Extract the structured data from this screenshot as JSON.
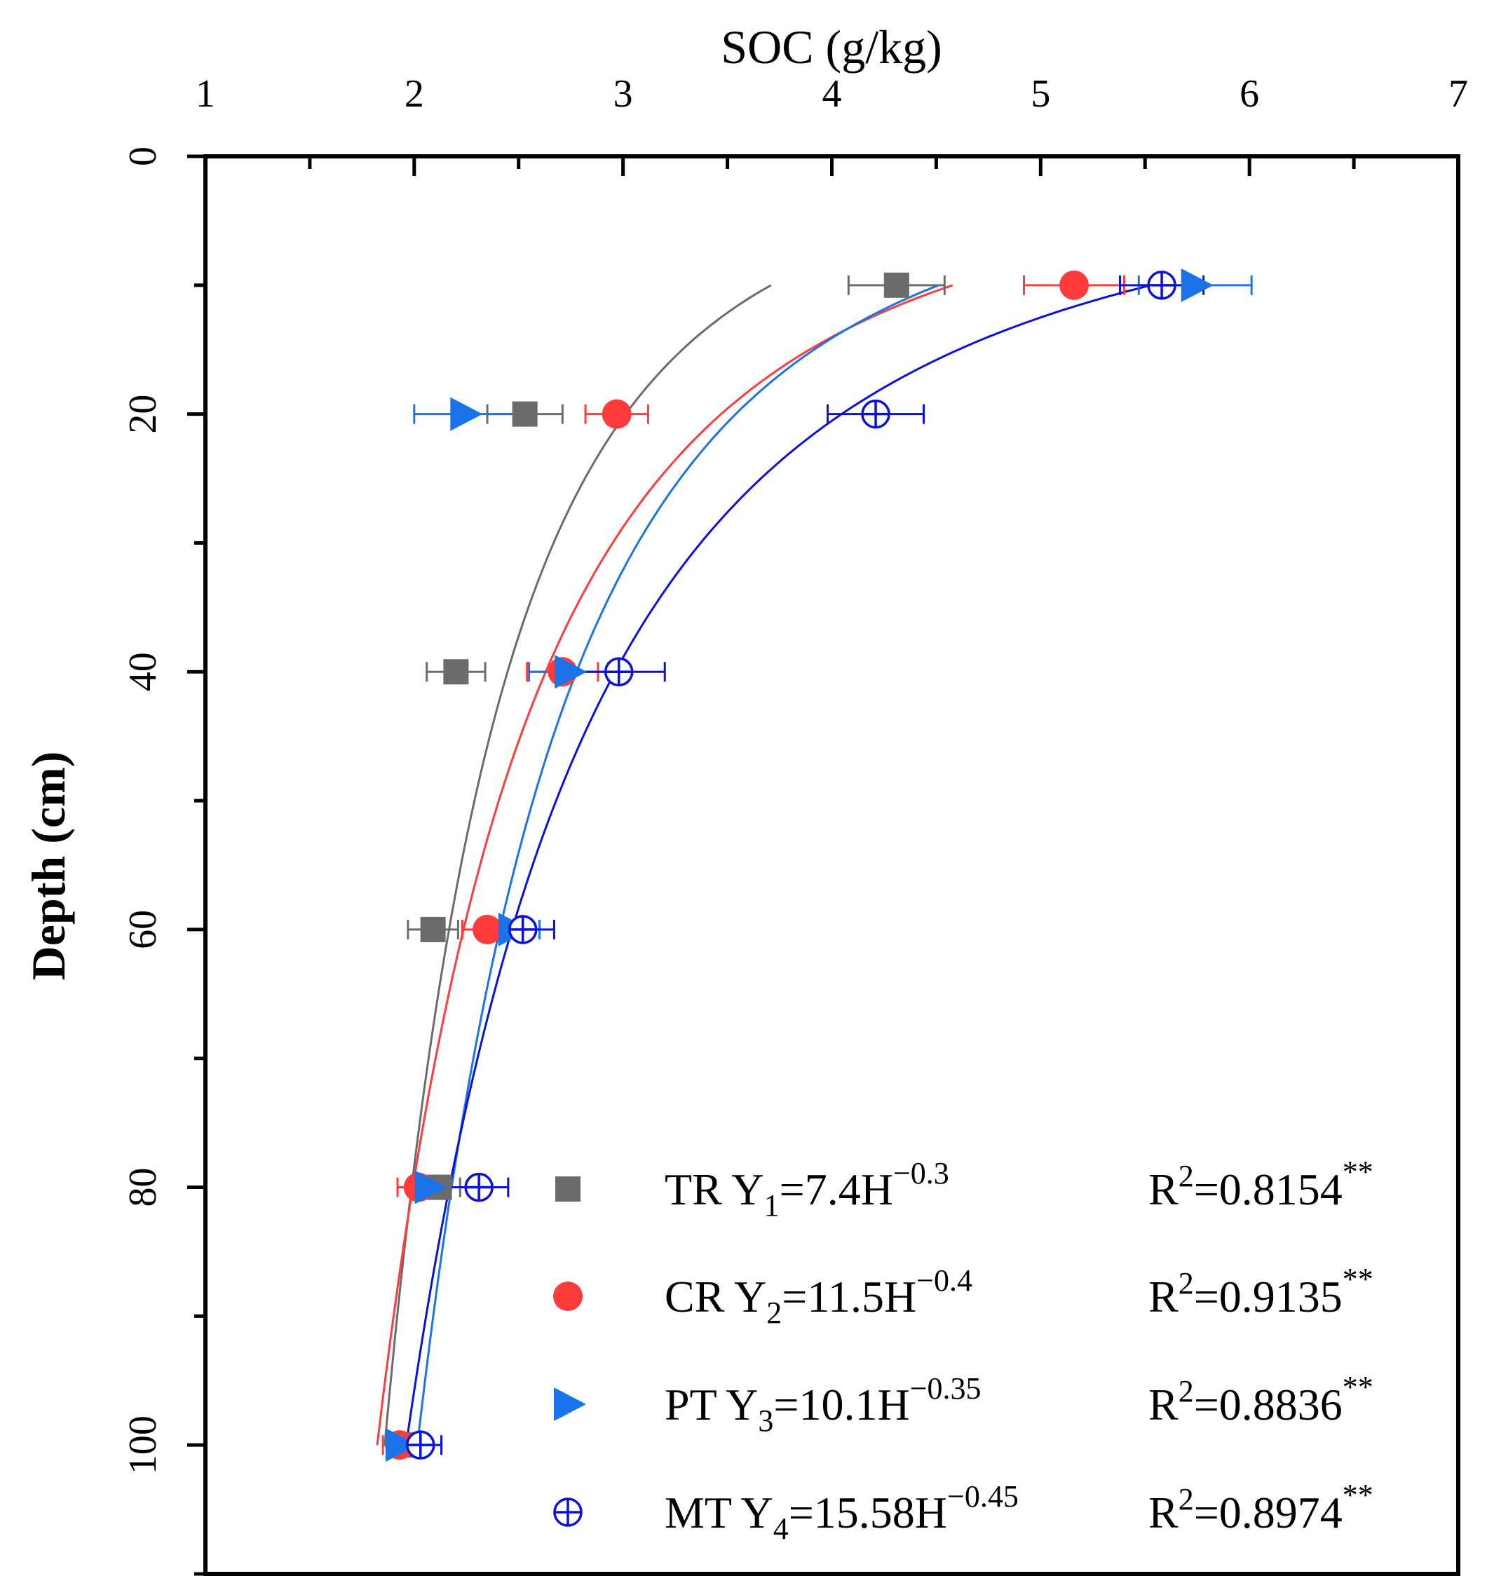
{
  "chart_data": {
    "type": "scatter",
    "title": "",
    "xlabel": "SOC (g/kg)",
    "ylabel": "Depth (cm)",
    "xlim": [
      1,
      7
    ],
    "ylim": [
      0,
      110
    ],
    "x_ticks": [
      1,
      2,
      3,
      4,
      5,
      6,
      7
    ],
    "x_tick_labels": [
      "1",
      "2",
      "3",
      "4",
      "5",
      "6",
      "7"
    ],
    "y_ticks": [
      0,
      20,
      40,
      60,
      80,
      100
    ],
    "y_tick_labels": [
      "0",
      "20",
      "40",
      "60",
      "80",
      "100"
    ],
    "x_axis_position": "top",
    "y_axis_inverted": true,
    "grid": false,
    "legend_position": "bottom-right",
    "series": [
      {
        "name": "TR",
        "marker": "square",
        "color": "#6b6b6b",
        "fit": {
          "a": 7.4,
          "b": -0.3,
          "depth_range": [
            10,
            100
          ]
        },
        "legend_prefix": "TR Y",
        "legend_sub": "1",
        "legend_eq": "=7.4H",
        "legend_exp": "−0.3",
        "legend_r": "R",
        "legend_r_sup": "2",
        "legend_r_val": "=0.8154",
        "legend_sig": "**",
        "points": [
          {
            "depth": 10,
            "soc": 4.31,
            "err": 0.23
          },
          {
            "depth": 20,
            "soc": 2.53,
            "err": 0.18
          },
          {
            "depth": 40,
            "soc": 2.2,
            "err": 0.14
          },
          {
            "depth": 60,
            "soc": 2.09,
            "err": 0.12
          },
          {
            "depth": 80,
            "soc": 2.12,
            "err": 0.1
          },
          {
            "depth": 100,
            "soc": 1.95,
            "err": 0.07
          }
        ]
      },
      {
        "name": "CR",
        "marker": "circle",
        "color": "#ff3b3b",
        "fit": {
          "a": 11.5,
          "b": -0.4,
          "depth_range": [
            10,
            100
          ]
        },
        "legend_prefix": "CR Y",
        "legend_sub": "2",
        "legend_eq": "=11.5H",
        "legend_exp": "−0.4",
        "legend_r": "R",
        "legend_r_sup": "2",
        "legend_r_val": "=0.9135",
        "legend_sig": "**",
        "points": [
          {
            "depth": 10,
            "soc": 5.16,
            "err": 0.24
          },
          {
            "depth": 20,
            "soc": 2.97,
            "err": 0.15
          },
          {
            "depth": 40,
            "soc": 2.71,
            "err": 0.17
          },
          {
            "depth": 60,
            "soc": 2.35,
            "err": 0.12
          },
          {
            "depth": 80,
            "soc": 2.02,
            "err": 0.1
          },
          {
            "depth": 100,
            "soc": 1.93,
            "err": 0.08
          }
        ]
      },
      {
        "name": "PT",
        "marker": "triangle-right",
        "color": "#1a73e8",
        "fit": {
          "a": 10.1,
          "b": -0.35,
          "depth_range": [
            10,
            100
          ]
        },
        "legend_prefix": "PT Y",
        "legend_sub": "3",
        "legend_eq": "=10.1H",
        "legend_exp": "−0.35",
        "legend_r": "R",
        "legend_r_sup": "2",
        "legend_r_val": "=0.8836",
        "legend_sig": "**",
        "points": [
          {
            "depth": 10,
            "soc": 5.74,
            "err": 0.27
          },
          {
            "depth": 20,
            "soc": 2.24,
            "err": 0.24
          },
          {
            "depth": 40,
            "soc": 2.74,
            "err": 0.19
          },
          {
            "depth": 60,
            "soc": 2.47,
            "err": 0.13
          },
          {
            "depth": 80,
            "soc": 2.07,
            "err": 0.1
          },
          {
            "depth": 100,
            "soc": 1.93,
            "err": 0.06
          }
        ]
      },
      {
        "name": "MT",
        "marker": "circle-cross",
        "color": "#0a10e0",
        "fit": {
          "a": 15.58,
          "b": -0.45,
          "depth_range": [
            10,
            100
          ]
        },
        "legend_prefix": "MT Y",
        "legend_sub": "4",
        "legend_eq": "=15.58H",
        "legend_exp": "−0.45",
        "legend_r": "R",
        "legend_r_sup": "2",
        "legend_r_val": "=0.8974",
        "legend_sig": "**",
        "points": [
          {
            "depth": 10,
            "soc": 5.58,
            "err": 0.2
          },
          {
            "depth": 20,
            "soc": 4.21,
            "err": 0.23
          },
          {
            "depth": 40,
            "soc": 2.98,
            "err": 0.22
          },
          {
            "depth": 60,
            "soc": 2.52,
            "err": 0.15
          },
          {
            "depth": 80,
            "soc": 2.31,
            "err": 0.14
          },
          {
            "depth": 100,
            "soc": 2.03,
            "err": 0.1
          }
        ]
      }
    ]
  }
}
